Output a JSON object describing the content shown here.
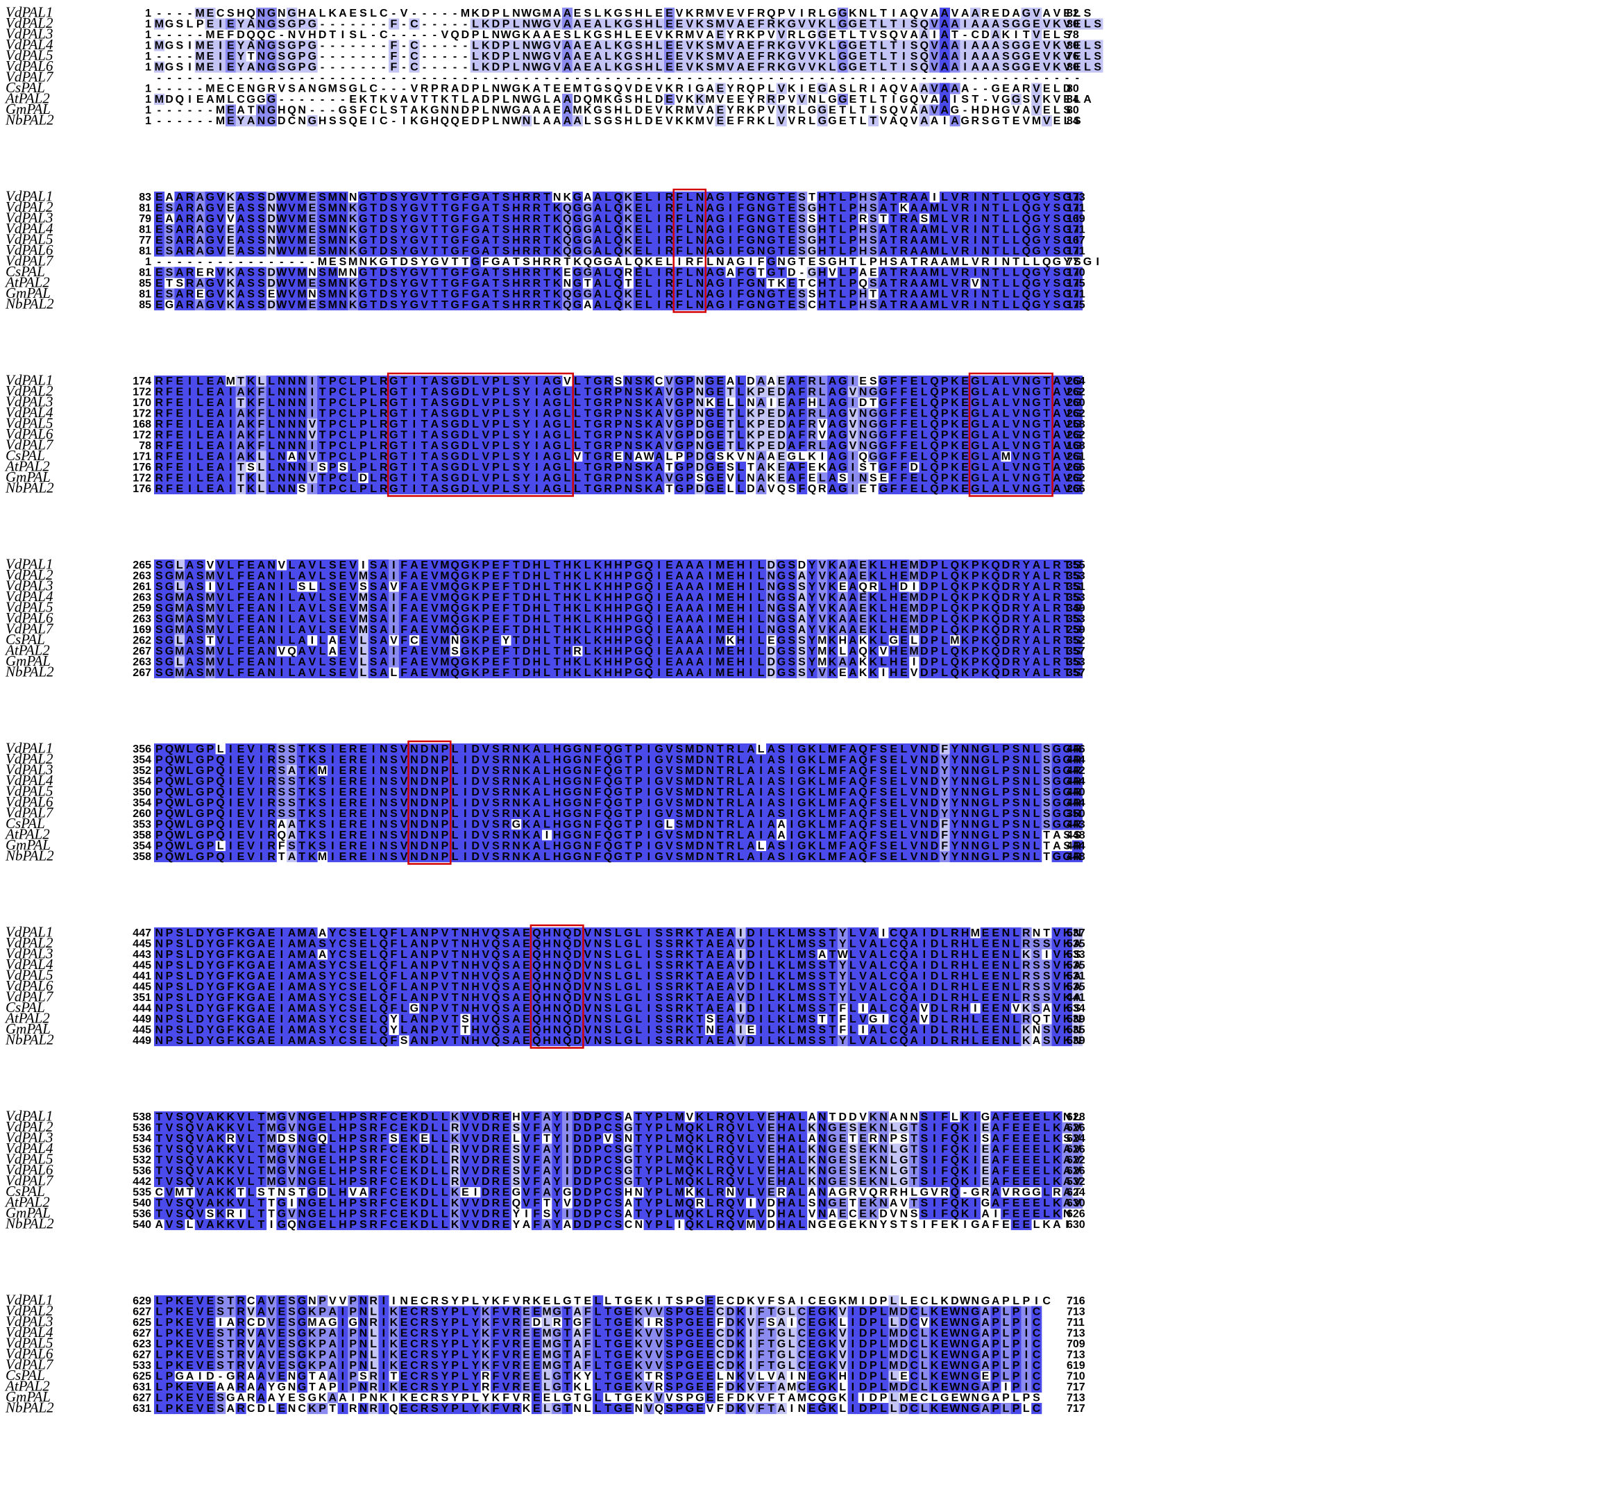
{
  "sequence_names": [
    "VdPAL1",
    "VdPAL2",
    "VdPAL3",
    "VdPAL4",
    "VdPAL5",
    "VdPAL6",
    "VdPAL7",
    "CsPAL",
    "AtPAL2",
    "GmPAL",
    "NbPAL2"
  ],
  "conservation_colors": {
    "high": "#4b4bec",
    "mid": "#8c8cf0",
    "low": "#c4c4f5",
    "none": "#ffffff"
  },
  "highlight_color": "#d40000",
  "blocks": [
    {
      "rows": [
        {
          "start": "1",
          "seq": "----MECSHQNGNGHALKAESLC-V-----MKDPLNWGMAAESLKGSHLEEVKRMVEVFRQPVIRLGGKNLTIAQVAAVAAREDAGVAVELS",
          "end": "82"
        },
        {
          "start": "1",
          "seq": "MGSLPEIEYANGSGPG-------F-C-----LKDPLNWGVAAEALKGSHLEEVKSMVAEFRKGVVKLGGETLTISQVAAIAAASGGEVKVELS",
          "end": "80"
        },
        {
          "start": "1",
          "seq": "-----MEFDQQC-NVHDTISL-C-----VQDPLNWGKAAESLKGSHLEEVKRMVAEYRKPVVRLGGETLTVSQVAAIAT-CDAKITVELS",
          "end": "78"
        },
        {
          "start": "1",
          "seq": "MGSIMEIEYANGSGPG-------F-C-----LKDPLNWGVAAEALKGSHLEEVKSMVAEFRKGVVKLGGETLTISQVAAIAAASGGEVKVELS",
          "end": "80"
        },
        {
          "start": "1",
          "seq": "----MEIEYTNGSGPG-------F-C-----LKDPLNWGVAAEALKGSHLEEVKSMVAEFRKGVVKLGGETLTISQVAAIAAASGGEVKVELS",
          "end": "76"
        },
        {
          "start": "1",
          "seq": "MGSIMEIEYANGSGPG-------F-C-----LKDPLNWGVAAEALKGSHLEEVKSMVAEFRKGVVKLGGETLTISQVAAIAAASGGEVKVELS",
          "end": "80"
        },
        {
          "start": "",
          "seq": "-------------------------------------------------------------------------------------------",
          "end": ""
        },
        {
          "start": "1",
          "seq": "-----MECENGRVSANGMSGLC---VRPRADPLNWGKATEEMTGSQVDEVKRIGAEYRQPLVKIEGASLRIAQVAAVAAA--GEARVELD",
          "end": "80"
        },
        {
          "start": "1",
          "seq": "MDQIEAMLCGGG-------EKTKVAVTTKTLADPLNWGLAADQMKGSHLDEVKKMVEEYRRPVVNLGGETLTIGQVAAIST-VGGSVKVELA",
          "end": "84"
        },
        {
          "start": "1",
          "seq": "------MEATNGHQN---GSFCLSTAKGNNDPLNWGAAAEAMKGSHLDEVKRMVAEYRKPVVRLGGETLTISQVAAVAG-HDHGVAVELS",
          "end": "80"
        },
        {
          "start": "1",
          "seq": "------MEYANGDCNGHSSQEIC-IKGHQQEDPLNWNLAAAALSGSHLDEVKKMVEEFRKLVVRLGGETLTVAQVAAIAGRSGTEVMVELS",
          "end": "84"
        }
      ],
      "boxes": []
    },
    {
      "rows": [
        {
          "start": "83",
          "seq": "EAARAGVKASSDWVMESMNNGTDSYGVTTGFGATSHRRTNKGAALQKELIRFLNAGIFGNGTESTHTLPHSATRAAILVRINTLLQGYSGI",
          "end": "173"
        },
        {
          "start": "81",
          "seq": "ESARAGVEASSNWVMESMNKGTDSYGVTTGFGATSHRRTKQGGALQKELIRFLNAGIFGNGTESGHTLPHSATKAAMLVRINTLLQGYSGI",
          "end": "171"
        },
        {
          "start": "79",
          "seq": "EAARAGVVASSDWVMESMNKGTDSYGVTTGFGATSHRRTKQGGALQKELIRFLNAGIFGNGTESSHTLPRSTTRASMLVRINTLLQGYSGI",
          "end": "169"
        },
        {
          "start": "81",
          "seq": "ESARAGVEASSNWVMESMNKGTDSYGVTTGFGATSHRRTKQGGALQKELIRFLNAGIFGNGTESGHTLPHSATRAAMLVRINTLLQGYSGI",
          "end": "171"
        },
        {
          "start": "77",
          "seq": "ESARAGVEASSNWVMESMNKGTDSYGVTTGFGATSHRRTKQGGALQKELIRFLNAGIFGNGTESGHTLPHSATRAAMLVRINTLLQGYSGI",
          "end": "167"
        },
        {
          "start": "81",
          "seq": "ESARAGVEASSNWVMESMNKGTDSYGVTTGFGATSHRRTKQGGALQKELIRFLNAGIFGNGTESGHTLPHSATRAAMLVRINTLLQGYSGI",
          "end": "171"
        },
        {
          "start": "1",
          "seq": "----------------MESMNKGTDSYGVTTGFGATSHRRTKQGGALQKELIRFLNAGIFGNGTESGHTLPHSATRAAMLVRINTLLQGYSGI",
          "end": "77"
        },
        {
          "start": "81",
          "seq": "ESARERVKASSDWVMNSMMNGTDSYGVTTGFGATSHRRTKEGGALQRELIRFLNAGAFGTGTD-GHVLPAEATRAAMLVRINTLLQGYSGI",
          "end": "170"
        },
        {
          "start": "85",
          "seq": "ETSRAGVKASSDWVMESMNKGTDSYGVTTGFGATSHRRTKNGTALQTELIRFLNAGIFGNTKETCHTLPQSATRAAMLVRVNTLLQGYSGI",
          "end": "175"
        },
        {
          "start": "81",
          "seq": "ESAREGVKASSEWVMNSMNKGTDSYGVTTGFGATSHRRTKQGGALQKELIRFLNAGIFGNGTESSHTLPHTATRAAMLVRINTLLQGYSGI",
          "end": "171"
        },
        {
          "start": "85",
          "seq": "EGARAGVKASSDWVMESMNKGTDSYGVTTGFGATSHRRTKQGAALQKELIRFLNAGIFGNGTESCHTLPHSATRAAMLVRINTLLQGYSGI",
          "end": "175"
        }
      ],
      "boxes": [
        {
          "col": 51,
          "len": 3
        }
      ]
    },
    {
      "rows": [
        {
          "start": "174",
          "seq": "RFEILEAMTKLLNNNITPCLPLRGTITASGDLVPLSYIAGVLTGRSNSKCVGPNGEALDAAEAFRLAGIESGFFELQPKEGLALVNGTAVG",
          "end": "264"
        },
        {
          "start": "172",
          "seq": "RFEILEAIAKFLNNNITPCLPLRGTITASGDLVPLSYIAGLLTGRPNSKAVGPNGETLKPEDAFRLAGVNGGFFELQPKEGLALVNGTAVG",
          "end": "262"
        },
        {
          "start": "170",
          "seq": "RFEILEAITKFLNNNITPCLPLRGTITASGDLVPLSYIAGLLTGRPNSKAVGPNKELLNAIEAFHLAGIDTGFFELQPKEGLALVNGTAVG",
          "end": "260"
        },
        {
          "start": "172",
          "seq": "RFEILEAIAKFLNNNITPCLPLRGTITASGDLVPLSYIAGLLTGRPNSKAVGPNGETLKPEDAFRLAGVNGGFFELQPKEGLALVNGTAVG",
          "end": "262"
        },
        {
          "start": "168",
          "seq": "RFEILEAIAKFLNNNVTPCLPLRGTITASGDLVPLSYIAGLLTGRPNSKAVGPDGETLKPEDAFRVAGVNGGFFELQPKEGLALVNGTAVG",
          "end": "258"
        },
        {
          "start": "172",
          "seq": "RFEILEAIAKFLNNNVTPCLPLRGTITASGDLVPLSYIAGLLTGRPNSKAVGPDGETLKPEDAFRVAGVNGGFFELQPKEGLALVNGTAVG",
          "end": "262"
        },
        {
          "start": "78",
          "seq": "RFEILEAIAKFLNNNITPCLPLRGTITASGDLVPLSYIAGLLTGRPNSKAVGPNGETLKPEDAFRLAGVNGGFFELQPKEGLALVNGTAVG",
          "end": "168"
        },
        {
          "start": "171",
          "seq": "RFEILEAIAKLLNANVTPCLPLRGTITASGDLVPLSYIAGLVTGRENAWALPPDGSKVNAAEGLKIAGIQGGFFELQPKEGLAMVNGTAVG",
          "end": "261"
        },
        {
          "start": "176",
          "seq": "RFEILEAITSLLNNNISPSLPLRGTITASGDLVPLSYIAGLLTGRPNSKATGPDGESLTAKEAFEKAGISTGFFDLQPKEGLALVNGTAVG",
          "end": "266"
        },
        {
          "start": "172",
          "seq": "RFEILEAITKLLNNNVTPCLDLRGTITASGDLVPLSYIAGLLTGRPNSKAVGPSGEVLNAKEAFELASINSEFFELQPKEGLALVNGTAVG",
          "end": "262"
        },
        {
          "start": "176",
          "seq": "RFEILEAITKLLNNSITPCLPLRGTITASGDLVPLSYIAGLLTGRPNSKATGPDGELLDAVQSFQRAGIETGFFELQPKEGLALVNGTAVG",
          "end": "266"
        }
      ],
      "boxes": [
        {
          "col": 23,
          "len": 18
        },
        {
          "col": 80,
          "len": 8
        }
      ]
    },
    {
      "rows": [
        {
          "start": "265",
          "seq": "SGLASVVLFEANVLAVLSEVISAIFAEVMQGKPEFTDHLTHKLKHHPGQIEAAAIMEHILDGSDYVKAAEKLHEMDPLQKPKQDRYALRTS",
          "end": "355"
        },
        {
          "start": "263",
          "seq": "SGMASMVLFEANILAVLSEVMSAIFAEVMQGKPEFTDHLTHKLKHHPGQIEAAAIMEHILNGSAYVKAAEKLHEMDPLQKPKQDRYALRTS",
          "end": "353"
        },
        {
          "start": "261",
          "seq": "SGLASIVLFEANILSLLSEVSSAVFAEVMQGKPEFTDHLTHKLKHHPGQIEAAAIMEHILNGSSYVKEAQRLHDIDPLQKPKQDRYALRTS",
          "end": "351"
        },
        {
          "start": "263",
          "seq": "SGMASMVLFEANILAVLSEVMSAIFAEVMQGKPEFTDHLTHKLKHHPGQIEAAAIMEHILNGSAYVKAAEKLHEMDPLQKPKQDRYALRTS",
          "end": "353"
        },
        {
          "start": "259",
          "seq": "SGMASMVLFEANILAVLSEVMSAIFAEVMQGKPEFTDHLTHKLKHHPGQIEAAAIMEHILNGSAYVKAAEKLHEMDPLQKPKQDRYALRTS",
          "end": "349"
        },
        {
          "start": "263",
          "seq": "SGMASMVLFEANILAVLSEVMSAIFAEVMQGKPEFTDHLTHKLKHHPGQIEAAAIMEHILNGSAYVKAAEKLHEMDPLQKPKQDRYALRTS",
          "end": "353"
        },
        {
          "start": "169",
          "seq": "SGMASMVLFEANILAVLSEVMSAIFAEVMQGKPEFTDHLTHKLKHHPGQIEAAAIMEHILNGSAYVKAAEKLHEMDPLQKPKQDRYALRTS",
          "end": "259"
        },
        {
          "start": "262",
          "seq": "SGLASTVLFEANILAILAEVLSAVFCEVMNGKPEYTDHLTHKLKHHPGQIEAAAIMKHILEGSSYMKHAKKLGELDPLMKPKQDRYALRTS",
          "end": "352"
        },
        {
          "start": "267",
          "seq": "SGMASMVLFEANVQAVLAEVLSAIFAEVMSGKPEFTDHLTHRLKHHPGQIEAAAIMEHILDGSSYMKLAQKVHEMDPLQKPKQDRYALRTS",
          "end": "357"
        },
        {
          "start": "263",
          "seq": "SGLASMVLFEANILAVLSEVLSAIFAEVMQGKPEFTDHLTHKLKHHPGQIEAAAIMEHILDGSSYMKAAKKLHEIDPLQKPKQDRYALRTS",
          "end": "353"
        },
        {
          "start": "267",
          "seq": "SGMASMVLFEANILAVLSEVLSALFAEVMQGKPEFTDHLTHKLKHHPGQIEAAAIMEHILDGSSYVKEAKKIHEVDPLQKPKQDRYALRTS",
          "end": "357"
        }
      ],
      "boxes": []
    },
    {
      "rows": [
        {
          "start": "356",
          "seq": "PQWLGPLIEVIRSSTKSIEREINSVNDNPLIDVSRNKALHGGNFQGTPIGVSMDNTRLALASIGKLMFAQFSELVNDFYNNGLPSNLSGGR",
          "end": "446"
        },
        {
          "start": "354",
          "seq": "PQWLGPQIEVIRSSTKSIEREINSVNDNPLIDVSRNKALHGGNFQGTPIGVSMDNTRLAIASIGKLMFAQFSELVNDYYNNGLPSNLSGGR",
          "end": "444"
        },
        {
          "start": "352",
          "seq": "PQWLGPQIEVIRSATKMIEREINSVNDNPLIDVSRNKALHGGNFQGTPIGVSMDNTRLAIASIGKLMFAQFSELVNDYYNNGLPSNLSGGR",
          "end": "442"
        },
        {
          "start": "354",
          "seq": "PQWLGPQIEVIRSSTKSIEREINSVNDNPLIDVSRNKALHGGNFQGTPIGVSMDNTRLAIASIGKLMFAQFSELVNDYYNNGLPSNLSGGR",
          "end": "444"
        },
        {
          "start": "350",
          "seq": "PQWLGPQIEVIRSSTKSIEREINSVNDNPLIDVSRNKALHGGNFQGTPIGVSMDNTRLAIASIGKLMFAQFSELVNDYYNNGLPSNLSGGR",
          "end": "440"
        },
        {
          "start": "354",
          "seq": "PQWLGPQIEVIRSSTKSIEREINSVNDNPLIDVSRNKALHGGNFQGTPIGVSMDNTRLAIASIGKLMFAQFSELVNDYYNNGLPSNLSGGR",
          "end": "444"
        },
        {
          "start": "260",
          "seq": "PQWLGPQIEVIRSSTKSIEREINSVNDNPLIDVSRNKALHGGNFQGTPIGVSMDNTRLAIASIGKLMFAQFSELVNDYYNNGLPSNLSGGR",
          "end": "350"
        },
        {
          "start": "353",
          "seq": "PQWLGPQIEVIRAATKSIEREINSVNDNPLIDVSRGKALHGGNFQGTPIGLSMDNTRLAIAAIGKLMFAQFSELVNDFYNNGLPSNLSGGR",
          "end": "443"
        },
        {
          "start": "358",
          "seq": "PQWLGPQIEVIRQATKSIEREINSVNDNPLIDVSRNKAIHGGNFQGTPIGVSMDNTRLAIAAIGKLMFAQFSELVNDFYNNGLPSNLTASS",
          "end": "448"
        },
        {
          "start": "354",
          "seq": "PQWLGPLIEVIRFSTKSIEREINSVNDNPLIDVSRNKALHGGNFQGTPIGVSMDNTRLALASIGKLMFAQFSELVNDFYNNGLPSNLTASR",
          "end": "444"
        },
        {
          "start": "358",
          "seq": "PQWLGPQIEVIRTATKMIEREINSVNDNPLIDVSRNKALHGGNFQGTPIGVSMDNTRLAIASIGKLMFAQFSELVNDYYNNGLPSNLTGGR",
          "end": "448"
        }
      ],
      "boxes": [
        {
          "col": 25,
          "len": 4
        }
      ]
    },
    {
      "rows": [
        {
          "start": "447",
          "seq": "NPSLDYGFKGAEIAMAAYCSELQFLANPVTNHVQSAEQHNQDVNSLGLISSRKTAEAIDILKLMSSTYLVAICQAIDLRHMEENLRNTVKN",
          "end": "537"
        },
        {
          "start": "445",
          "seq": "NPSLDYGFKGAEIAMASYCSELQFLANPVTNHVQSAEQHNQDVNSLGLISSRKTAEAVDILKLMSSTYLVALCQAIDLRHLEENLRSSVKA",
          "end": "535"
        },
        {
          "start": "443",
          "seq": "NPSLDYGFKGAEIAMAAYCSELQFLANPVTNHVQSAEQHNQDVNSLGLISSRKTAEAIDILKLMSATWLVALCQAIDLRHLEENLKSIVKS",
          "end": "533"
        },
        {
          "start": "445",
          "seq": "NPSLDYGFKGAEIAMASYCSELQFLANPVTNHVQSAEQHNQDVNSLGLISSRKTAEAVDILKLMSSTYLVALCQAIDLRHLEENLRSSVKA",
          "end": "535"
        },
        {
          "start": "441",
          "seq": "NPSLDYGFKGAEIAMASYCSELQFLANPVTNHVQSAEQHNQDVNSLGLISSRKTAEAVDILKLMSSTYLVALCQAIDLRHLEENLRSSVKA",
          "end": "531"
        },
        {
          "start": "445",
          "seq": "NPSLDYGFKGAEIAMASYCSELQFLANPVTNHVQSAEQHNQDVNSLGLISSRKTAEAVDILKLMSSTYLVALCQAIDLRHLEENLRSSVKA",
          "end": "535"
        },
        {
          "start": "351",
          "seq": "NPSLDYGFKGAEIAMASYCSELQFLANPVTNHVQSAEQHNQDVNSLGLISSRKTAEAVDILKLMSSTYLVALCQAIDLRHLEENLRSSVKA",
          "end": "441"
        },
        {
          "start": "444",
          "seq": "NPSLDYGFKGAEIAMASYCSELQFLGNPVTNHVQSAEQHNQDVNSLGLISSRKTAEAIDILKLMSSTFLIALCQAVDLRHIEENVKSAVKS",
          "end": "534"
        },
        {
          "start": "449",
          "seq": "NPSLDYGFKGAEIAMASYCSELQYLANPVTSHVQSAEQHNQDVNSLGLISSRKTSEAVDILKLMSTTFLVGICQAVDLRHLEENLRQTVKN",
          "end": "539"
        },
        {
          "start": "445",
          "seq": "NPSLDYGFKGAEIAMASYCSELQYLANPVTTHVQSAEQHNQDVNSLGLISSRKTNEAIEILKLMSSTFLIALCQAIDLRHLEENLKNSVKN",
          "end": "535"
        },
        {
          "start": "449",
          "seq": "NPSLDYGFKGAEIAMASYCSELQFSANPVTNHVQSAEQHNQDVNSLGLISSRKTAEAVDILKLMSSTYLVALCQAIDLRHLEENLKASVKN",
          "end": "539"
        }
      ],
      "boxes": [
        {
          "col": 37,
          "len": 5
        }
      ]
    },
    {
      "rows": [
        {
          "start": "538",
          "seq": "TVSQVAKKVLTMGVNGELHPSRFCEKDLLKVVDREHVFAYIDDPCSATYPLMVKLRQVLVEHALANTDDVKNANNSIFLKIGAFEEELKNL",
          "end": "628"
        },
        {
          "start": "536",
          "seq": "TVSQVAKKVLTMGVNGELHPSRFCEKDLLRVVDRESVFAYIDDPCSGTYPLMQKLRQVLVEHALKNGESEKNLGTSIFQKIEAFEEELKAV",
          "end": "626"
        },
        {
          "start": "534",
          "seq": "TVSQVAKRVLTMDSNGQLHPSRFSEKELLKVVDRELVFTYIDDPVSNTYPLMQKLRQVLVEHALANGETERNPSTSIFQKISAFEEELKSV",
          "end": "624"
        },
        {
          "start": "536",
          "seq": "TVSQVAKKVLTMGVNGELHPSRFCEKDLLRVVDRESVFAYIDDPCSGTYPLMQKLRQVLVEHALKNGESEKNLGTSIFQKIEAFEEELKAV",
          "end": "626"
        },
        {
          "start": "532",
          "seq": "TVSQVAKKVLTMGVNGELHPSRFCEKDLLRVVDRESVFAYIDDPCSGTYPLMQKLRQVLVEHALKNGESEKNLGTSIFQKIEAFEEELKAV",
          "end": "622"
        },
        {
          "start": "536",
          "seq": "TVSQVAKKVLTMGVNGELHPSRFCEKDLLRVVDRESVFAYIDDPCSGTYPLMQKLRQVLVEHALKNGESEKNLGTSIFQKIEAFEEELKAV",
          "end": "626"
        },
        {
          "start": "442",
          "seq": "TVSQVAKKVLTMGVNGELHPSRFCEKDLLRVVDRESVFAYIDDPCSGTYPLMQKLRQVLVEHALKNGESEKNLGTSIFQKIEAFEEELKAV",
          "end": "532"
        },
        {
          "start": "535",
          "seq": "CVMTVAKKTLSTNSTGDLHVARFCEKDLLKEIDREGVFAYGDDPCSHNYPLMKKLRNVLVERALANAGRVQRRHLGVRQ-GRAVRGGLRAT",
          "end": "624"
        },
        {
          "start": "540",
          "seq": "TVSQVAKKVLTTGINGELHPSRFCEKDLLKVVDREQVFTYVDDPCSATYPLMQRLRQVIVDHALSNGETEKNAVTSIFQKIGAFEEELKAV",
          "end": "630"
        },
        {
          "start": "536",
          "seq": "TVSQVSKRILTTGVNGELHPSRFCEKDLLKVVDREYIFSYIDDPCSATYPLMQKLRQVLVDHALVNAECEKDVNSSIFQKIAIFEEELKN",
          "end": "626"
        },
        {
          "start": "540",
          "seq": "AVSLVAKKVLTIGQNGELHPSRFCEKDLLKVVDREYAFAYADDPCSCNYPLIQKLRQVMVDHALNGEGEKNYSTSIFEKIGAFEEELKAI",
          "end": "630"
        }
      ],
      "boxes": []
    },
    {
      "rows": [
        {
          "start": "629",
          "seq": "LPKEVESTRCAVESGNPVVPNRIINECRSYPLYKFVRKELGTELLTGEKITSPGEECDKVFSAICEGKMIDPLLECLKDWNGAPLPIC",
          "end": "716"
        },
        {
          "start": "627",
          "seq": "LPKEVESTRVAVESGKPAIPNLIKECRSYPLYKFVREEMGTAFLTGEKVVSPGEECDKIFTGLCEGKVIDPLMDCLKEWNGAPLPIC",
          "end": "713"
        },
        {
          "start": "625",
          "seq": "LPKEVEIARCDVESGMAGIGNRIKECRSYPLYKFVREDLRTGFLTGEKIRSPGEEFDKVFSAICEGKLIDPLLDCVKEWNGAPLPIC",
          "end": "711"
        },
        {
          "start": "627",
          "seq": "LPKEVESTRVAVESGKPAIPNLIKECRSYPLYKFVREEMGTAFLTGEKVVSPGEECDKIFTGLCEGKVIDPLMDCLKEWNGAPLPIC",
          "end": "713"
        },
        {
          "start": "623",
          "seq": "LPKEVESTRVAVESGKPAIPNLIKECRSYPLYKFVREEMGTAFLTGEKVVSPGEECDKIFTGLCEGKVIDPLMDCLKEWNGAPLPIC",
          "end": "709"
        },
        {
          "start": "627",
          "seq": "LPKEVESTRVAVESGKPAIPNLIKECRSYPLYKFVREEMGTAFLTGEKVVSPGEECDKIFTGLCEGKVIDPLMDCLKEWNGAPLPIC",
          "end": "713"
        },
        {
          "start": "533",
          "seq": "LPKEVESTRVAVESGKPAIPNLIKECRSYPLYKFVREEMGTAFLTGEKVVSPGEECDKIFTGLCEGKVIDPLMDCLKEWNGAPLPIC",
          "end": "619"
        },
        {
          "start": "625",
          "seq": "LPGAID-GRAAVENGTAAIPSRITECRSYPLYRFVREELGTKYLTGEKTRSPGEELNKVLVAINEGKHIDPLLECLKEWNGEPLPIC",
          "end": "710"
        },
        {
          "start": "631",
          "seq": "LPKEVEAARAAYGNGTAPIPNRIKECRSYPLYRFVREELGTKLLTGEKVRSPGEEFDKVFTAMCEGKLIDPLMDCLKEWNGAPIPIC",
          "end": "717"
        },
        {
          "start": "627",
          "seq": "LPKEVESGARAAYESGKAAIPNKIKECRSYPLYKFVREELGTGLLTGEKVVSPGEEFDKVFTAMCQGKIIDPLMECLGEWNGAPLPS",
          "end": "713"
        },
        {
          "start": "631",
          "seq": "LPKEVESARCDLENCKPTIRNRIQECRSYPLYKFVRKELGTNLLTGENVQSPGEVFDKVFTAINEGKLIDPLLDCLKEWNGAPLPLC",
          "end": "717"
        }
      ],
      "boxes": []
    }
  ]
}
